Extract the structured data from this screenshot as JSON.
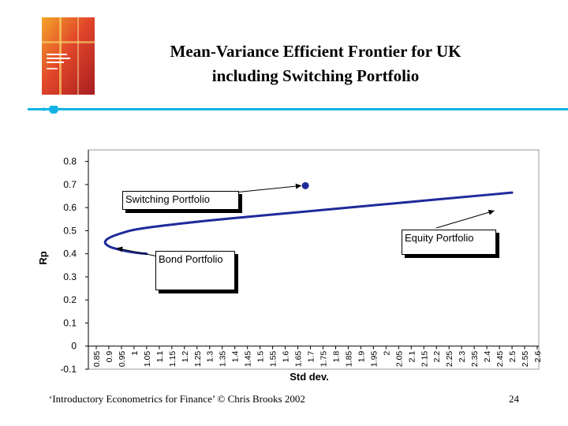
{
  "slide": {
    "title_line1": "Mean-Variance Efficient Frontier for UK",
    "title_line2": "including Switching Portfolio",
    "footer": "‘Introductory Econometrics for Finance’ © Chris Brooks 2002",
    "page_number": "24",
    "accent_color": "#12b3e6"
  },
  "chart_data": {
    "type": "line",
    "xlabel": "Std dev.",
    "ylabel": "Rp",
    "x_ticks": [
      "0.85",
      "0.9",
      "0.95",
      "1",
      "1.05",
      "1.1",
      "1.15",
      "1.2",
      "1.25",
      "1.3",
      "1.35",
      "1.4",
      "1.45",
      "1.5",
      "1.55",
      "1.6",
      "1.65",
      "1.7",
      "1.75",
      "1.8",
      "1.85",
      "1.9",
      "1.95",
      "2",
      "2.05",
      "2.1",
      "2.15",
      "2.2",
      "2.25",
      "2.3",
      "2.35",
      "2.4",
      "2.45",
      "2.5",
      "2.55",
      "2.6"
    ],
    "y_ticks": [
      "0.8",
      "0.7",
      "0.6",
      "0.5",
      "0.4",
      "0.3",
      "0.2",
      "0.1",
      "0",
      "-0.1"
    ],
    "ylim": [
      -0.1,
      0.85
    ],
    "series": [
      {
        "frontier": [
          [
            2.5,
            0.665
          ],
          [
            2.3,
            0.645
          ],
          [
            2.1,
            0.625
          ],
          [
            1.9,
            0.605
          ],
          [
            1.7,
            0.585
          ],
          [
            1.5,
            0.565
          ],
          [
            1.3,
            0.545
          ],
          [
            1.1,
            0.52
          ],
          [
            1.0,
            0.505
          ],
          [
            0.95,
            0.49
          ],
          [
            0.9,
            0.47
          ],
          [
            0.88,
            0.45
          ],
          [
            0.9,
            0.43
          ],
          [
            0.95,
            0.415
          ],
          [
            1.0,
            0.405
          ],
          [
            1.05,
            0.4
          ]
        ]
      }
    ],
    "points": [
      {
        "label": "Switching Portfolio",
        "x": 1.68,
        "y": 0.695
      }
    ],
    "annotations": [
      {
        "text": "Switching Portfolio",
        "points_to": [
          1.68,
          0.695
        ]
      },
      {
        "text": "Equity Portfolio",
        "points_to": [
          2.43,
          0.6
        ]
      },
      {
        "text": "Bond Portfolio",
        "points_to": [
          0.9,
          0.445
        ]
      }
    ],
    "line_color": "#1f2a9a",
    "grid": false
  }
}
